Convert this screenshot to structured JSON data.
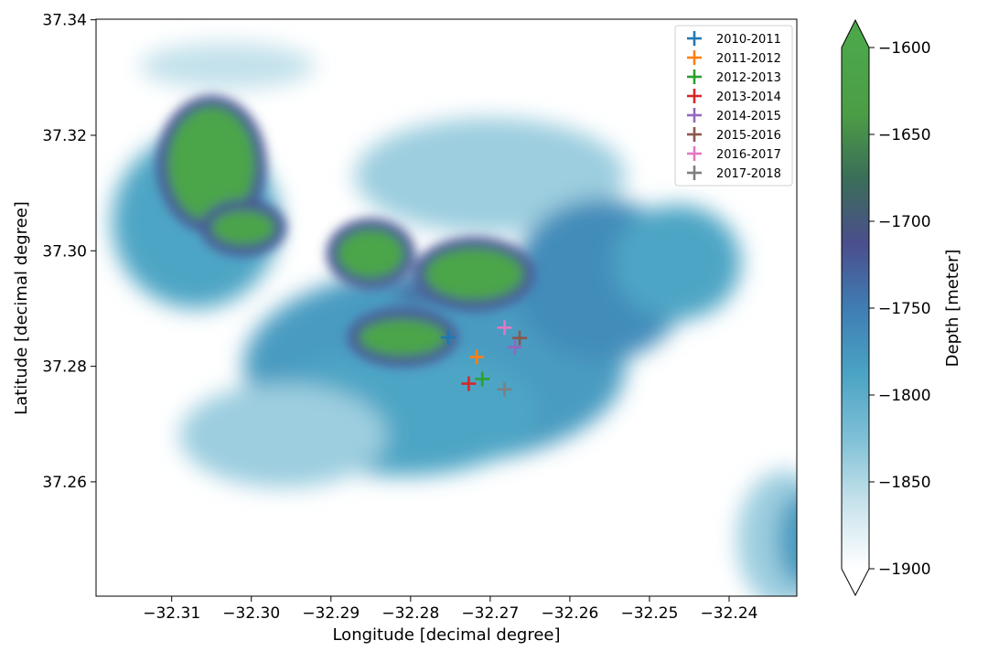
{
  "chart_data": {
    "type": "scatter",
    "background": "bathymetry heatmap (depth)",
    "xlabel": "Longitude [decimal degree]",
    "ylabel": "Latitude [decimal degree]",
    "xlim": [
      -32.3195,
      -32.2315
    ],
    "ylim": [
      37.2402,
      37.3401
    ],
    "x_ticks": [
      -32.31,
      -32.3,
      -32.29,
      -32.28,
      -32.27,
      -32.26,
      -32.25,
      -32.24
    ],
    "x_tick_labels": [
      "−32.31",
      "−32.30",
      "−32.29",
      "−32.28",
      "−32.27",
      "−32.26",
      "−32.25",
      "−32.24"
    ],
    "y_ticks": [
      37.26,
      37.28,
      37.3,
      37.32,
      37.34
    ],
    "y_tick_labels": [
      "37.26",
      "37.28",
      "37.30",
      "37.32",
      "37.34"
    ],
    "grid": false,
    "legend_position": "top-right",
    "series": [
      {
        "name": "2010-2011",
        "color": "#1f77b4",
        "x": [
          -32.2753
        ],
        "y": [
          37.285
        ]
      },
      {
        "name": "2011-2012",
        "color": "#ff7f0e",
        "x": [
          -32.2717
        ],
        "y": [
          37.2816
        ]
      },
      {
        "name": "2012-2013",
        "color": "#2ca02c",
        "x": [
          -32.271
        ],
        "y": [
          37.2778
        ]
      },
      {
        "name": "2013-2014",
        "color": "#d62728",
        "x": [
          -32.2727
        ],
        "y": [
          37.277
        ]
      },
      {
        "name": "2014-2015",
        "color": "#9467bd",
        "x": [
          -32.2669
        ],
        "y": [
          37.2833
        ]
      },
      {
        "name": "2015-2016",
        "color": "#8c564b",
        "x": [
          -32.2663
        ],
        "y": [
          37.2849
        ]
      },
      {
        "name": "2016-2017",
        "color": "#e377c2",
        "x": [
          -32.2682
        ],
        "y": [
          37.2867
        ]
      },
      {
        "name": "2017-2018",
        "color": "#7f7f7f",
        "x": [
          -32.2682
        ],
        "y": [
          37.276
        ]
      }
    ],
    "colorbar": {
      "label": "Depth [meter]",
      "min": -1900,
      "max": -1600,
      "ticks": [
        -1600,
        -1650,
        -1700,
        -1750,
        -1800,
        -1850,
        -1900
      ],
      "tick_labels": [
        "−1600",
        "−1650",
        "−1700",
        "−1750",
        "−1800",
        "−1850",
        "−1900"
      ],
      "extend": "both",
      "colors": [
        "#ffffff",
        "#c8e3ec",
        "#7fc0d6",
        "#4aa3c4",
        "#3f7db3",
        "#4b4e8c",
        "#3a6e58",
        "#4c9e46",
        "#4ca64a"
      ]
    },
    "depth_field": {
      "description_colors": {
        "deep": "#e4f1f7",
        "mid": "#55a6c6",
        "shallow_ring": "#48508e",
        "peak": "#4ca64a"
      },
      "blobs": [
        {
          "lon": -32.277,
          "lat": 37.28,
          "rx": 0.024,
          "ry": 0.017,
          "depth": -1780
        },
        {
          "lon": -32.281,
          "lat": 37.272,
          "rx": 0.017,
          "ry": 0.011,
          "depth": -1790
        },
        {
          "lon": -32.296,
          "lat": 37.268,
          "rx": 0.013,
          "ry": 0.009,
          "depth": -1840
        },
        {
          "lon": -32.307,
          "lat": 37.305,
          "rx": 0.0105,
          "ry": 0.015,
          "depth": -1790
        },
        {
          "lon": -32.303,
          "lat": 37.332,
          "rx": 0.011,
          "ry": 0.004,
          "depth": -1860
        },
        {
          "lon": -32.27,
          "lat": 37.313,
          "rx": 0.017,
          "ry": 0.01,
          "depth": -1840
        },
        {
          "lon": -32.256,
          "lat": 37.295,
          "rx": 0.011,
          "ry": 0.014,
          "depth": -1765
        },
        {
          "lon": -32.2465,
          "lat": 37.298,
          "rx": 0.008,
          "ry": 0.01,
          "depth": -1790
        },
        {
          "lon": -32.233,
          "lat": 37.25,
          "rx": 0.006,
          "ry": 0.012,
          "depth": -1840
        },
        {
          "lon": -32.231,
          "lat": 37.25,
          "rx": 0.003,
          "ry": 0.008,
          "depth": -1780
        },
        {
          "lon": -32.305,
          "lat": 37.315,
          "rx": 0.0055,
          "ry": 0.01,
          "depth": -1605
        },
        {
          "lon": -32.301,
          "lat": 37.304,
          "rx": 0.004,
          "ry": 0.003,
          "depth": -1610
        },
        {
          "lon": -32.285,
          "lat": 37.2995,
          "rx": 0.0042,
          "ry": 0.0042,
          "depth": -1605
        },
        {
          "lon": -32.272,
          "lat": 37.296,
          "rx": 0.0062,
          "ry": 0.0045,
          "depth": -1605
        },
        {
          "lon": -32.281,
          "lat": 37.285,
          "rx": 0.0055,
          "ry": 0.0032,
          "depth": -1605
        },
        {
          "lon": -32.2792,
          "lat": 37.2928,
          "rx": 0.0025,
          "ry": 0.0018,
          "depth": -1720
        }
      ]
    }
  }
}
